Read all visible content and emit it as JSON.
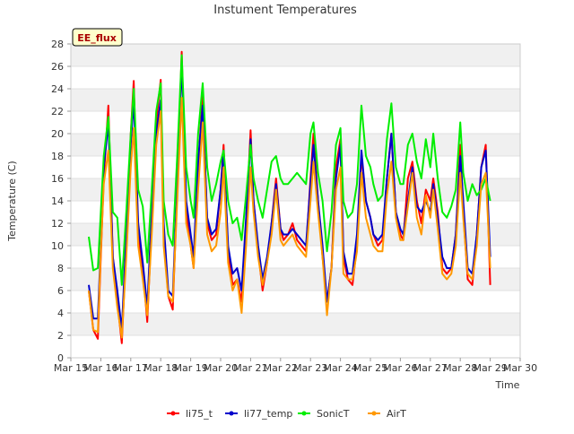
{
  "chart_data": {
    "type": "line",
    "title": "Instument Temperatures",
    "xlabel": "Time",
    "ylabel": "Temperature (C)",
    "station_tag": "EE_flux",
    "xlim": [
      15,
      30
    ],
    "ylim": [
      0,
      28
    ],
    "grid": "horizontal bands",
    "legend_position": "bottom",
    "x_ticks": [
      15,
      16,
      17,
      18,
      19,
      20,
      21,
      22,
      23,
      24,
      25,
      26,
      27,
      28,
      29,
      30
    ],
    "x_tick_labels": [
      "Mar 15",
      "Mar 16",
      "Mar 17",
      "Mar 18",
      "Mar 19",
      "Mar 20",
      "Mar 21",
      "Mar 22",
      "Mar 23",
      "Mar 24",
      "Mar 25",
      "Mar 26",
      "Mar 27",
      "Mar 28",
      "Mar 29",
      "Mar 30"
    ],
    "y_ticks": [
      0,
      2,
      4,
      6,
      8,
      10,
      12,
      14,
      16,
      18,
      20,
      22,
      24,
      26,
      28
    ],
    "series": [
      {
        "name": "li75_t",
        "color": "#ff0000",
        "x": [
          15.6,
          15.75,
          15.9,
          16.0,
          16.1,
          16.25,
          16.4,
          16.55,
          16.7,
          16.85,
          17.0,
          17.1,
          17.25,
          17.4,
          17.55,
          17.7,
          17.85,
          18.0,
          18.1,
          18.25,
          18.4,
          18.55,
          18.7,
          18.85,
          19.0,
          19.1,
          19.25,
          19.4,
          19.55,
          19.7,
          19.85,
          20.0,
          20.1,
          20.25,
          20.4,
          20.55,
          20.7,
          20.85,
          21.0,
          21.1,
          21.25,
          21.4,
          21.55,
          21.7,
          21.85,
          22.0,
          22.1,
          22.25,
          22.4,
          22.55,
          22.7,
          22.85,
          23.0,
          23.1,
          23.25,
          23.4,
          23.55,
          23.7,
          23.85,
          24.0,
          24.1,
          24.25,
          24.4,
          24.55,
          24.7,
          24.85,
          25.0,
          25.1,
          25.25,
          25.4,
          25.55,
          25.7,
          25.85,
          26.0,
          26.1,
          26.25,
          26.4,
          26.55,
          26.7,
          26.85,
          27.0,
          27.1,
          27.25,
          27.4,
          27.55,
          27.7,
          27.85,
          28.0,
          28.1,
          28.25,
          28.4,
          28.55,
          28.7,
          28.85,
          29.0
        ],
        "values": [
          6.0,
          2.5,
          1.7,
          9.0,
          16.0,
          22.5,
          9.0,
          5.0,
          1.3,
          10.0,
          20.0,
          24.7,
          11.0,
          8.0,
          3.2,
          12.0,
          21.0,
          24.8,
          11.0,
          5.5,
          4.3,
          15.0,
          27.3,
          13.0,
          10.0,
          8.0,
          17.0,
          23.5,
          12.0,
          10.5,
          11.0,
          15.0,
          19.0,
          9.5,
          6.5,
          7.0,
          5.0,
          12.0,
          20.3,
          14.0,
          9.5,
          6.0,
          8.5,
          12.0,
          16.0,
          11.5,
          10.5,
          11.0,
          12.0,
          10.5,
          10.0,
          9.5,
          16.0,
          20.0,
          14.0,
          9.0,
          5.0,
          8.0,
          17.0,
          19.5,
          9.0,
          7.0,
          6.5,
          10.0,
          18.0,
          14.0,
          12.5,
          11.0,
          10.0,
          10.5,
          16.0,
          20.0,
          13.0,
          11.0,
          10.5,
          16.0,
          17.5,
          14.0,
          12.0,
          15.0,
          14.0,
          16.0,
          13.0,
          8.0,
          7.5,
          8.0,
          11.0,
          19.0,
          13.0,
          7.0,
          6.5,
          11.0,
          17.0,
          19.0,
          6.5
        ]
      },
      {
        "name": "li77_temp",
        "color": "#0000cc",
        "x": [
          15.6,
          15.75,
          15.9,
          16.0,
          16.1,
          16.25,
          16.4,
          16.55,
          16.7,
          16.85,
          17.0,
          17.1,
          17.25,
          17.4,
          17.55,
          17.7,
          17.85,
          18.0,
          18.1,
          18.25,
          18.4,
          18.55,
          18.7,
          18.85,
          19.0,
          19.1,
          19.25,
          19.4,
          19.55,
          19.7,
          19.85,
          20.0,
          20.1,
          20.25,
          20.4,
          20.55,
          20.7,
          20.85,
          21.0,
          21.1,
          21.25,
          21.4,
          21.55,
          21.7,
          21.85,
          22.0,
          22.1,
          22.25,
          22.4,
          22.55,
          22.7,
          22.85,
          23.0,
          23.1,
          23.25,
          23.4,
          23.55,
          23.7,
          23.85,
          24.0,
          24.1,
          24.25,
          24.4,
          24.55,
          24.7,
          24.85,
          25.0,
          25.1,
          25.25,
          25.4,
          25.55,
          25.7,
          25.85,
          26.0,
          26.1,
          26.25,
          26.4,
          26.55,
          26.7,
          26.85,
          27.0,
          27.1,
          27.25,
          27.4,
          27.55,
          27.7,
          27.85,
          28.0,
          28.1,
          28.25,
          28.4,
          28.55,
          28.7,
          28.85,
          29.0
        ],
        "values": [
          6.5,
          3.5,
          3.5,
          10.0,
          17.0,
          21.0,
          9.0,
          6.0,
          2.5,
          11.0,
          19.0,
          23.0,
          12.0,
          8.5,
          4.5,
          13.0,
          20.0,
          23.0,
          12.0,
          6.0,
          5.5,
          15.5,
          26.4,
          14.0,
          11.0,
          9.0,
          17.5,
          22.5,
          12.5,
          11.0,
          11.5,
          15.0,
          18.5,
          10.0,
          7.5,
          8.0,
          6.0,
          12.5,
          19.5,
          14.0,
          10.0,
          7.0,
          9.0,
          12.0,
          15.5,
          11.5,
          11.0,
          11.0,
          11.5,
          11.0,
          10.5,
          10.0,
          15.5,
          19.0,
          14.0,
          10.0,
          5.0,
          8.0,
          16.0,
          19.0,
          9.5,
          7.5,
          7.5,
          11.0,
          18.5,
          14.0,
          12.5,
          11.0,
          10.5,
          11.0,
          16.0,
          20.0,
          13.0,
          11.5,
          11.0,
          14.0,
          17.0,
          13.5,
          13.0,
          14.0,
          13.0,
          15.5,
          12.5,
          9.0,
          8.0,
          8.0,
          11.0,
          18.0,
          14.0,
          8.0,
          7.5,
          11.0,
          17.0,
          18.5,
          9.0
        ]
      },
      {
        "name": "SonicT",
        "color": "#00ee00",
        "x": [
          15.6,
          15.75,
          15.9,
          16.0,
          16.1,
          16.25,
          16.4,
          16.55,
          16.7,
          16.85,
          17.0,
          17.1,
          17.25,
          17.4,
          17.55,
          17.7,
          17.85,
          18.0,
          18.1,
          18.25,
          18.4,
          18.55,
          18.7,
          18.85,
          19.0,
          19.1,
          19.25,
          19.4,
          19.55,
          19.7,
          19.85,
          20.0,
          20.1,
          20.25,
          20.4,
          20.55,
          20.7,
          20.85,
          21.0,
          21.1,
          21.25,
          21.4,
          21.55,
          21.7,
          21.85,
          22.0,
          22.1,
          22.25,
          22.4,
          22.55,
          22.7,
          22.85,
          23.0,
          23.1,
          23.25,
          23.4,
          23.55,
          23.7,
          23.85,
          24.0,
          24.1,
          24.25,
          24.4,
          24.55,
          24.7,
          24.85,
          25.0,
          25.1,
          25.25,
          25.4,
          25.55,
          25.7,
          25.85,
          26.0,
          26.1,
          26.25,
          26.4,
          26.55,
          26.7,
          26.85,
          27.0,
          27.1,
          27.25,
          27.4,
          27.55,
          27.7,
          27.85,
          28.0,
          28.1,
          28.25,
          28.4,
          28.55,
          28.7,
          28.85,
          29.0
        ],
        "values": [
          10.8,
          7.8,
          8.0,
          13.0,
          18.0,
          21.5,
          13.0,
          12.5,
          6.5,
          13.0,
          20.0,
          24.0,
          15.0,
          13.5,
          8.5,
          15.0,
          22.0,
          24.5,
          14.0,
          11.0,
          10.0,
          18.0,
          27.0,
          17.0,
          14.0,
          12.5,
          20.0,
          24.5,
          17.0,
          14.0,
          15.5,
          17.5,
          18.5,
          14.0,
          12.0,
          12.5,
          10.5,
          14.5,
          19.0,
          16.0,
          14.0,
          12.5,
          15.0,
          17.5,
          18.0,
          16.0,
          15.5,
          15.5,
          16.0,
          16.5,
          16.0,
          15.5,
          20.0,
          21.0,
          16.5,
          14.0,
          9.5,
          13.0,
          19.0,
          20.5,
          14.0,
          12.5,
          13.0,
          15.5,
          22.5,
          18.0,
          17.0,
          15.5,
          14.0,
          14.5,
          19.5,
          22.7,
          17.0,
          15.5,
          15.5,
          19.0,
          20.0,
          17.5,
          16.0,
          19.5,
          17.0,
          20.0,
          16.0,
          13.0,
          12.5,
          13.5,
          15.0,
          21.0,
          16.5,
          14.0,
          15.5,
          14.5,
          15.0,
          16.0,
          14.0
        ]
      },
      {
        "name": "AirT",
        "color": "#ff9900",
        "x": [
          15.6,
          15.75,
          15.9,
          16.0,
          16.1,
          16.25,
          16.4,
          16.55,
          16.7,
          16.85,
          17.0,
          17.1,
          17.25,
          17.4,
          17.55,
          17.7,
          17.85,
          18.0,
          18.1,
          18.25,
          18.4,
          18.55,
          18.7,
          18.85,
          19.0,
          19.1,
          19.25,
          19.4,
          19.55,
          19.7,
          19.85,
          20.0,
          20.1,
          20.25,
          20.4,
          20.55,
          20.7,
          20.85,
          21.0,
          21.1,
          21.25,
          21.4,
          21.55,
          21.7,
          21.85,
          22.0,
          22.1,
          22.25,
          22.4,
          22.55,
          22.7,
          22.85,
          23.0,
          23.1,
          23.25,
          23.4,
          23.55,
          23.7,
          23.85,
          24.0,
          24.1,
          24.25,
          24.4,
          24.55,
          24.7,
          24.85,
          25.0,
          25.1,
          25.25,
          25.4,
          25.55,
          25.7,
          25.85,
          26.0,
          26.1,
          26.25,
          26.4,
          26.55,
          26.7,
          26.85,
          27.0,
          27.1,
          27.25,
          27.4,
          27.55,
          27.7,
          27.85,
          28.0,
          28.1,
          28.25,
          28.4,
          28.55,
          28.7,
          28.85,
          29.0
        ],
        "values": [
          6.0,
          2.5,
          2.3,
          9.5,
          15.5,
          18.5,
          8.0,
          4.5,
          1.8,
          9.0,
          17.0,
          20.5,
          10.0,
          7.0,
          3.8,
          11.0,
          19.0,
          22.0,
          10.0,
          5.5,
          5.0,
          14.0,
          23.2,
          12.0,
          10.0,
          8.0,
          15.0,
          21.0,
          11.0,
          9.5,
          10.0,
          13.0,
          17.0,
          8.5,
          6.0,
          7.0,
          4.0,
          10.0,
          17.0,
          13.0,
          9.0,
          6.5,
          8.5,
          11.0,
          15.0,
          10.5,
          10.0,
          10.5,
          11.0,
          10.0,
          9.5,
          9.0,
          14.0,
          17.5,
          13.0,
          9.0,
          3.8,
          8.0,
          15.0,
          17.0,
          7.5,
          7.0,
          7.0,
          9.5,
          16.5,
          12.5,
          11.0,
          10.0,
          9.5,
          9.5,
          14.5,
          17.5,
          12.5,
          10.5,
          10.5,
          13.5,
          16.5,
          12.5,
          11.0,
          14.5,
          12.5,
          15.0,
          11.5,
          7.5,
          7.0,
          7.5,
          10.0,
          16.5,
          12.5,
          7.5,
          7.0,
          10.0,
          15.5,
          16.5,
          8.0
        ]
      }
    ]
  }
}
